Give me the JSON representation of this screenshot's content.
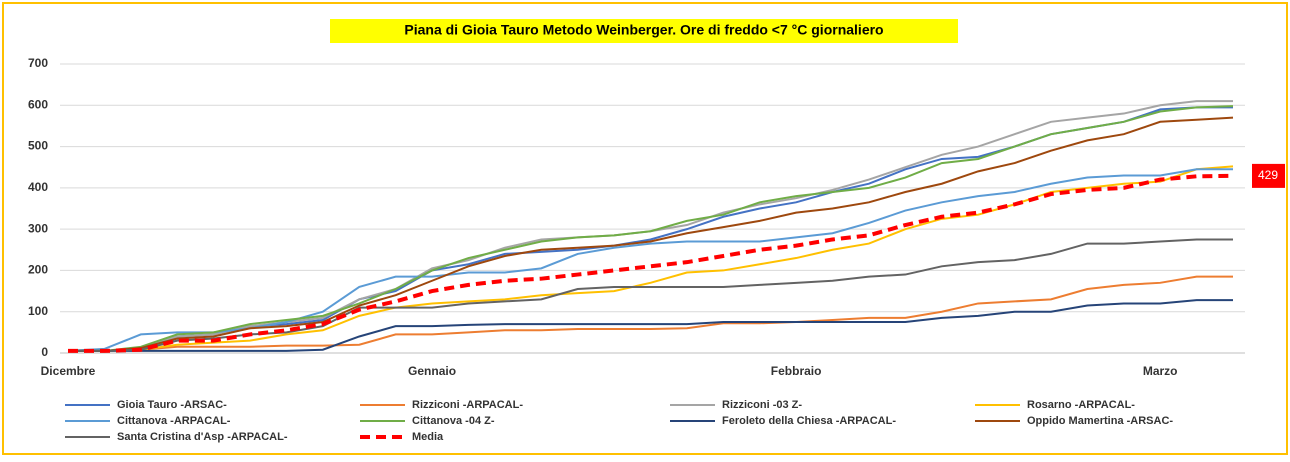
{
  "chart_data": {
    "type": "line",
    "title": "Piana di Gioia Tauro Metodo Weinberger. Ore di freddo  <7 °C giornaliero",
    "categories": [
      "Dicembre",
      null,
      null,
      null,
      null,
      null,
      null,
      null,
      null,
      null,
      "Gennaio",
      null,
      null,
      null,
      null,
      null,
      null,
      null,
      null,
      null,
      "Febbraio",
      null,
      null,
      null,
      null,
      null,
      null,
      null,
      null,
      null,
      "Marzo",
      null,
      null
    ],
    "ylim": [
      0,
      700
    ],
    "yticks": [
      0,
      100,
      200,
      300,
      400,
      500,
      600,
      700
    ],
    "grid": true,
    "series": [
      {
        "name": "Gioia Tauro -ARSAC-",
        "color": "#4472c4",
        "values": [
          5,
          5,
          10,
          40,
          45,
          65,
          70,
          80,
          130,
          150,
          200,
          215,
          240,
          245,
          250,
          260,
          275,
          300,
          330,
          350,
          365,
          390,
          410,
          445,
          470,
          475,
          500,
          530,
          545,
          560,
          590,
          595,
          595
        ]
      },
      {
        "name": "Rizziconi -ARPACAL-",
        "color": "#ed7d31",
        "values": [
          5,
          5,
          8,
          15,
          15,
          15,
          18,
          18,
          20,
          45,
          45,
          50,
          55,
          55,
          58,
          58,
          58,
          60,
          72,
          72,
          75,
          80,
          85,
          85,
          100,
          120,
          125,
          130,
          155,
          165,
          170,
          185,
          185
        ]
      },
      {
        "name": "Rizziconi -03 Z-",
        "color": "#a5a5a5",
        "values": [
          5,
          5,
          10,
          40,
          45,
          65,
          75,
          85,
          130,
          155,
          205,
          225,
          255,
          275,
          280,
          285,
          295,
          310,
          340,
          360,
          375,
          395,
          420,
          450,
          480,
          500,
          530,
          560,
          570,
          580,
          600,
          610,
          610
        ]
      },
      {
        "name": "Rosarno -ARPACAL-",
        "color": "#ffc000",
        "values": [
          5,
          5,
          8,
          20,
          25,
          30,
          45,
          55,
          90,
          110,
          120,
          125,
          130,
          140,
          145,
          150,
          170,
          195,
          200,
          215,
          230,
          250,
          265,
          300,
          325,
          335,
          360,
          390,
          400,
          410,
          415,
          445,
          452
        ]
      },
      {
        "name": "Cittanova -ARPACAL-",
        "color": "#5b9bd5",
        "values": [
          5,
          10,
          45,
          50,
          50,
          60,
          75,
          100,
          160,
          185,
          185,
          195,
          195,
          205,
          240,
          255,
          265,
          270,
          270,
          270,
          280,
          290,
          315,
          345,
          365,
          380,
          390,
          410,
          425,
          430,
          430,
          445,
          445
        ]
      },
      {
        "name": "Cittanova -04 Z-",
        "color": "#70ad47",
        "values": [
          5,
          5,
          15,
          45,
          50,
          70,
          80,
          90,
          120,
          155,
          200,
          230,
          250,
          270,
          280,
          285,
          295,
          320,
          335,
          365,
          380,
          390,
          400,
          425,
          460,
          470,
          500,
          530,
          545,
          560,
          585,
          595,
          598
        ]
      },
      {
        "name": "Feroleto della Chiesa -ARPACAL-",
        "color": "#264478",
        "values": [
          5,
          5,
          5,
          5,
          5,
          5,
          5,
          8,
          40,
          65,
          65,
          68,
          70,
          70,
          70,
          70,
          70,
          70,
          75,
          75,
          75,
          75,
          75,
          75,
          85,
          90,
          100,
          100,
          115,
          120,
          120,
          128,
          128
        ]
      },
      {
        "name": "Oppido Mamertina -ARSAC-",
        "color": "#9e480e",
        "values": [
          5,
          5,
          12,
          35,
          40,
          60,
          65,
          75,
          115,
          140,
          175,
          210,
          235,
          250,
          255,
          260,
          270,
          290,
          305,
          320,
          340,
          350,
          365,
          390,
          410,
          440,
          460,
          490,
          515,
          530,
          560,
          565,
          570
        ]
      },
      {
        "name": "Santa Cristina d'Asp -ARPACAL-",
        "color": "#636363",
        "values": [
          5,
          5,
          8,
          30,
          35,
          45,
          50,
          65,
          110,
          110,
          110,
          120,
          125,
          130,
          155,
          160,
          160,
          160,
          160,
          165,
          170,
          175,
          185,
          190,
          210,
          220,
          225,
          240,
          265,
          265,
          270,
          275,
          275
        ]
      },
      {
        "name": "Media",
        "color": "#ff0000",
        "dashed": true,
        "values": [
          5,
          5,
          8,
          30,
          30,
          45,
          55,
          70,
          105,
          125,
          150,
          165,
          175,
          180,
          190,
          200,
          210,
          220,
          235,
          250,
          260,
          275,
          285,
          310,
          330,
          340,
          360,
          385,
          395,
          400,
          420,
          428,
          429
        ]
      }
    ]
  }
}
